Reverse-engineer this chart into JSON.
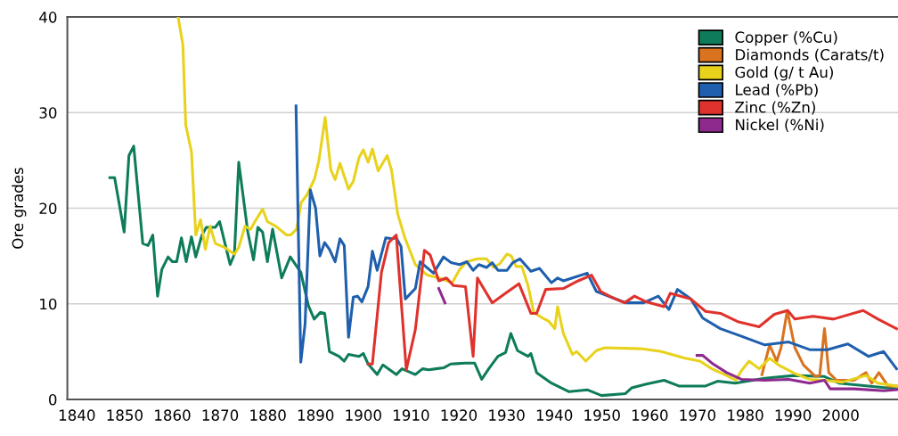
{
  "chart_data": {
    "type": "line",
    "ylabel": "Ore grades",
    "xlim": [
      1838,
      2012
    ],
    "xticks": [
      1840,
      1850,
      1860,
      1870,
      1880,
      1890,
      1900,
      1910,
      1920,
      1930,
      1940,
      1950,
      1960,
      1970,
      1980,
      1990,
      2000
    ],
    "ylim": [
      0,
      40
    ],
    "yticks": [
      0,
      10,
      20,
      30,
      40
    ],
    "grid": "y",
    "legend": "top right",
    "marker": "none",
    "line_style": "solid",
    "series": [
      {
        "name": "Copper (%Cu)",
        "color": "#0e7c5a",
        "x": [
          1846.9,
          1847.9,
          1849.9,
          1850.9,
          1851.9,
          1853.8,
          1854.9,
          1855.9,
          1856.9,
          1857.8,
          1859.1,
          1860,
          1860.9,
          1861.9,
          1862.9,
          1864,
          1864.9,
          1866.2,
          1867.1,
          1869,
          1869.9,
          1872.1,
          1873,
          1873.9,
          1875.8,
          1877,
          1877.9,
          1878.9,
          1879.9,
          1881,
          1882.9,
          1884.7,
          1886.9,
          1888.5,
          1889.7,
          1891,
          1891.9,
          1892.9,
          1894.9,
          1896,
          1896.9,
          1899.1,
          1900,
          1901,
          1902.9,
          1904.1,
          1906.9,
          1908.1,
          1910.9,
          1912.4,
          1913.7,
          1915.2,
          1916.8,
          1918.3,
          1921.4,
          1923.3,
          1924.8,
          1926.4,
          1928.2,
          1929.8,
          1930.9,
          1932.3,
          1934.5,
          1935.1,
          1936.3,
          1939.4,
          1943.1,
          1946.9,
          1949.9,
          1954.9,
          1956.2,
          1959.3,
          1963,
          1966.1,
          1971.7,
          1974.2,
          1977.9,
          1984.1,
          1990.3,
          1996.5,
          1999.6,
          2005.8,
          2011.7
        ],
        "values": [
          23.2,
          23.2,
          17.5,
          25.5,
          26.5,
          16.3,
          16.1,
          17.2,
          10.8,
          13.6,
          14.9,
          14.4,
          14.4,
          16.9,
          14.4,
          17.0,
          14.9,
          17.2,
          18.0,
          18.0,
          18.6,
          14.1,
          15.2,
          24.8,
          17.5,
          14.6,
          18.0,
          17.5,
          14.4,
          17.8,
          12.7,
          14.9,
          13.3,
          9.8,
          8.4,
          9.1,
          9.0,
          5.0,
          4.5,
          4.0,
          4.7,
          4.5,
          4.8,
          3.7,
          2.6,
          3.6,
          2.6,
          3.2,
          2.6,
          3.2,
          3.1,
          3.2,
          3.3,
          3.7,
          3.8,
          3.8,
          2.1,
          3.3,
          4.5,
          4.9,
          6.9,
          5.1,
          4.5,
          4.8,
          2.8,
          1.7,
          0.8,
          1.0,
          0.4,
          0.6,
          1.2,
          1.6,
          2.0,
          1.4,
          1.4,
          1.9,
          1.7,
          2.2,
          2.5,
          2.4,
          1.7,
          1.4,
          1.1
        ]
      },
      {
        "name": "Diamonds (Carats/t)",
        "color": "#d9731f",
        "x": [
          1983.5,
          1985.1,
          1986.6,
          1987.5,
          1988.8,
          1990.4,
          1992.2,
          1994.7,
          1995.6,
          1996.6,
          1997.5,
          1999.1,
          2002.8,
          2005.3,
          2006.5,
          2008,
          2009.9,
          2011.7
        ],
        "values": [
          2.6,
          5.7,
          4.0,
          5.4,
          9.3,
          5.4,
          3.6,
          2.4,
          2.5,
          7.4,
          2.8,
          2.0,
          2.0,
          2.8,
          1.7,
          2.8,
          1.4,
          1.4
        ]
      },
      {
        "name": "Gold (g/ t Au)",
        "color": "#e8d21c",
        "x": [
          1861.2,
          1862.2,
          1862.8,
          1864,
          1864.9,
          1865.9,
          1866.9,
          1867.9,
          1869,
          1870.9,
          1873,
          1873.9,
          1875.2,
          1876.4,
          1877.4,
          1878.9,
          1879.9,
          1881.7,
          1883.9,
          1884.8,
          1886,
          1887,
          1888.2,
          1889.8,
          1890.7,
          1892,
          1893.2,
          1894.1,
          1895.1,
          1896.9,
          1897.9,
          1899.1,
          1900,
          1901,
          1901.9,
          1903.1,
          1905,
          1905.9,
          1907.2,
          1908.7,
          1910.9,
          1913.4,
          1915.8,
          1918.6,
          1920.2,
          1921.7,
          1923.9,
          1925.8,
          1927.3,
          1928.6,
          1930.1,
          1931,
          1932,
          1933.2,
          1934.5,
          1935.7,
          1937.6,
          1938.8,
          1940.1,
          1940.7,
          1941.9,
          1943.8,
          1944.7,
          1946.6,
          1948.8,
          1950.6,
          1958.1,
          1962.4,
          1967.4,
          1970.5,
          1973,
          1976.1,
          1978,
          1979.2,
          1980.8,
          1982.9,
          1985.1,
          1987.3,
          1990.4,
          1993.5,
          1996.6,
          2000.3,
          2005.3,
          2007.8,
          2011.7
        ],
        "values": [
          40.0,
          37.1,
          28.7,
          25.9,
          17.2,
          18.8,
          15.7,
          18.1,
          16.3,
          15.9,
          15.2,
          15.9,
          18.1,
          17.8,
          18.7,
          19.9,
          18.6,
          18.1,
          17.2,
          17.2,
          17.8,
          20.6,
          21.4,
          23.1,
          25.0,
          29.5,
          24.0,
          23.0,
          24.7,
          22.0,
          22.8,
          25.3,
          26.1,
          24.8,
          26.2,
          23.9,
          25.5,
          24.0,
          19.4,
          16.9,
          14.1,
          13.0,
          12.7,
          12.2,
          13.6,
          14.4,
          14.7,
          14.7,
          13.8,
          14.2,
          15.2,
          15.0,
          13.9,
          13.9,
          11.9,
          9.1,
          8.5,
          8.2,
          7.4,
          9.7,
          6.9,
          4.7,
          5.0,
          4.0,
          5.1,
          5.4,
          5.3,
          5.0,
          4.3,
          4.0,
          3.2,
          2.5,
          2.0,
          3.0,
          4.0,
          3.2,
          4.3,
          3.5,
          2.7,
          2.1,
          2.0,
          1.8,
          2.5,
          1.7,
          1.4
        ]
      },
      {
        "name": "Lead (%Pb)",
        "color": "#1f5fad",
        "x": [
          1885.9,
          1886.9,
          1887.8,
          1888.9,
          1890,
          1890.9,
          1891.9,
          1892.9,
          1894.1,
          1895.1,
          1896,
          1896.9,
          1897.9,
          1898.8,
          1899.7,
          1901,
          1901.9,
          1902.9,
          1904.7,
          1906,
          1906.9,
          1907.9,
          1908.8,
          1910.9,
          1911.9,
          1914.7,
          1916.8,
          1918.4,
          1920.2,
          1921.7,
          1923,
          1924.2,
          1925.8,
          1927,
          1928.2,
          1930.1,
          1931.3,
          1932.8,
          1935.1,
          1936.9,
          1939.4,
          1940.7,
          1941.9,
          1943.8,
          1946.9,
          1948.8,
          1951.9,
          1955,
          1958.7,
          1961.8,
          1964,
          1965.8,
          1968.6,
          1971.1,
          1974.8,
          1979.2,
          1984.1,
          1989.1,
          1993.5,
          1997.2,
          2001.5,
          2005.8,
          2009,
          2011.7
        ],
        "values": [
          30.7,
          3.9,
          7.9,
          21.9,
          20.0,
          15.0,
          16.4,
          15.7,
          14.4,
          16.8,
          16.1,
          6.5,
          10.7,
          10.8,
          10.2,
          11.8,
          15.5,
          13.5,
          16.9,
          16.8,
          16.9,
          16.0,
          10.5,
          11.6,
          14.4,
          13.2,
          14.9,
          14.3,
          14.1,
          14.4,
          13.5,
          14.1,
          13.8,
          14.3,
          13.5,
          13.5,
          14.3,
          14.7,
          13.4,
          13.7,
          12.2,
          12.7,
          12.4,
          12.7,
          13.2,
          11.3,
          10.7,
          10.1,
          10.1,
          10.8,
          9.4,
          11.5,
          10.5,
          8.5,
          7.4,
          6.6,
          5.7,
          6.0,
          5.2,
          5.2,
          5.8,
          4.5,
          5.0,
          3.2
        ]
      },
      {
        "name": "Zinc (%Zn)",
        "color": "#e0322c",
        "x": [
          1901,
          1901.9,
          1903.8,
          1905.3,
          1906.9,
          1909,
          1910.9,
          1912.8,
          1914,
          1915.8,
          1917.4,
          1918.9,
          1921.4,
          1923,
          1923.9,
          1927,
          1929.5,
          1932.6,
          1935.1,
          1936.3,
          1938.2,
          1941.9,
          1945,
          1947.8,
          1949.7,
          1951.9,
          1954.7,
          1956.8,
          1959.3,
          1963,
          1964.3,
          1968.6,
          1971.7,
          1974.8,
          1978.6,
          1982.9,
          1986.1,
          1988.9,
          1990.4,
          1994.2,
          1998.5,
          2004.7,
          2007.8,
          2011.7
        ],
        "values": [
          3.7,
          3.7,
          13.3,
          16.4,
          17.2,
          3.1,
          7.3,
          15.6,
          15.1,
          12.4,
          12.7,
          11.9,
          11.8,
          4.5,
          12.7,
          10.1,
          11.0,
          12.1,
          9.0,
          9.0,
          11.5,
          11.6,
          12.4,
          13.0,
          11.3,
          10.7,
          10.1,
          10.8,
          10.2,
          9.7,
          11.1,
          10.5,
          9.2,
          9.0,
          8.1,
          7.6,
          8.9,
          9.3,
          8.4,
          8.7,
          8.4,
          9.3,
          8.4,
          7.4
        ]
      },
      {
        "name": "Nickel (%Ni)",
        "color": "#8e2a8e",
        "x": [
          1915.8,
          1917.1,
          null,
          1969.9,
          1971.1,
          1973,
          1976.1,
          1979.2,
          1984.1,
          1989.1,
          1993.5,
          1996.6,
          1997.8,
          2002.8,
          2009,
          2011.7
        ],
        "values": [
          11.6,
          10.1,
          null,
          4.6,
          4.6,
          3.8,
          2.8,
          2.1,
          2.0,
          2.1,
          1.7,
          2.0,
          1.1,
          1.1,
          0.9,
          1.0
        ]
      }
    ]
  }
}
